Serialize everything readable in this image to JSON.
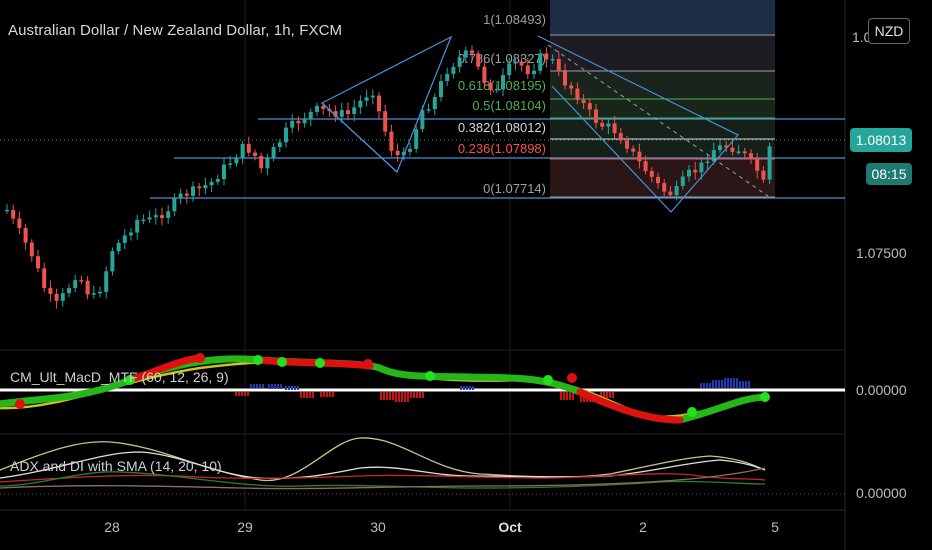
{
  "header": {
    "title": "Australian Dollar / New Zealand Dollar, 1h, FXCM"
  },
  "currency_badge": "NZD",
  "price_axis": {
    "top_label": "1.0",
    "mid_label": "1.07500",
    "last_price": "1.08013",
    "countdown": "08:15"
  },
  "macd_panel": {
    "label": "CM_Ult_MacD_MTF (60, 12, 26, 9)",
    "zero_label": "0.00000"
  },
  "adx_panel": {
    "label": "ADX and DI with SMA (14, 20, 10)",
    "zero_label": "0.00000"
  },
  "time_axis": {
    "labels": [
      "28",
      "29",
      "30",
      "Oct",
      "2",
      "5"
    ]
  },
  "fib_levels": [
    {
      "label": "1(1.08493)",
      "price": 1.08493,
      "color": "#9aa0a6"
    },
    {
      "label": "0.786(1.08327)",
      "price": 1.08327,
      "color": "#9aa0a6"
    },
    {
      "label": "0.618(1.08195)",
      "price": 1.08195,
      "color": "#4caf50"
    },
    {
      "label": "0.5(1.08104)",
      "price": 1.08104,
      "color": "#4caf50"
    },
    {
      "label": "0.382(1.08012)",
      "price": 1.08012,
      "color": "#cfd8dc"
    },
    {
      "label": "0.236(1.07898)",
      "price": 1.07898,
      "color": "#ef5350"
    },
    {
      "label": "0(1.07714)",
      "price": 1.07714,
      "color": "#9aa0a6"
    }
  ],
  "colors": {
    "up": "#26a69a",
    "down": "#ef5350",
    "drawing": "#4a90d9",
    "background": "#000000"
  },
  "chart_data": {
    "type": "candlestick",
    "title": "Australian Dollar / New Zealand Dollar, 1h, FXCM",
    "x_ticks": [
      "28",
      "29",
      "30",
      "Oct",
      "2",
      "5"
    ],
    "y_ticks": [
      1.075,
      1.08013
    ],
    "last_price": 1.08013,
    "fib_retracement": [
      {
        "ratio": 1,
        "price": 1.08493
      },
      {
        "ratio": 0.786,
        "price": 1.08327
      },
      {
        "ratio": 0.618,
        "price": 1.08195
      },
      {
        "ratio": 0.5,
        "price": 1.08104
      },
      {
        "ratio": 0.382,
        "price": 1.08012
      },
      {
        "ratio": 0.236,
        "price": 1.07898
      },
      {
        "ratio": 0,
        "price": 1.07714
      }
    ],
    "indicators": [
      "CM_Ult_MacD_MTF (60, 12, 26, 9)",
      "ADX and DI with SMA (14, 20, 10)"
    ]
  }
}
